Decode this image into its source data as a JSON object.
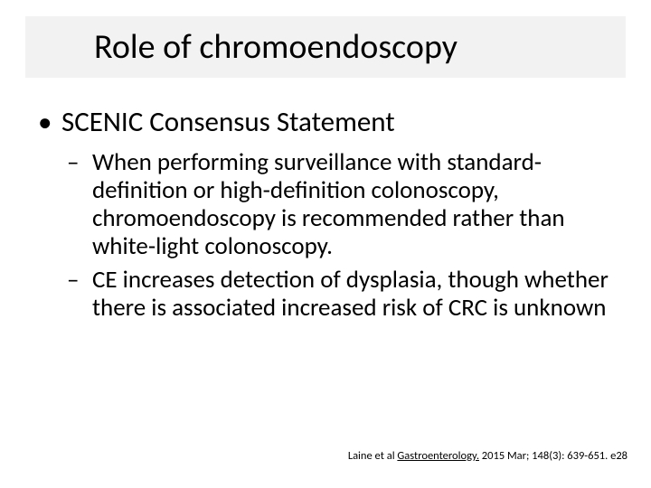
{
  "slide": {
    "title": "Role of chromoendoscopy",
    "title_bar_bg": "#f2f2f2",
    "title_fontsize": 38,
    "body_fontsize_l1": 31,
    "body_fontsize_l2": 27,
    "background_color": "#ffffff",
    "text_color": "#000000",
    "bullets": [
      {
        "text": "SCENIC Consensus Statement",
        "children": [
          {
            "text": "When performing surveillance with standard-definition or high-definition colonoscopy, chromoendoscopy is recommended rather than white-light colonoscopy."
          },
          {
            "text": "CE increases detection of dysplasia, though whether there is associated increased risk of CRC is unknown"
          }
        ]
      }
    ],
    "citation": {
      "prefix": "Laine et al ",
      "journal": "Gastroenterology.",
      "suffix": " 2015 Mar; 148(3): 639-651. e28",
      "fontsize": 12.5
    }
  }
}
